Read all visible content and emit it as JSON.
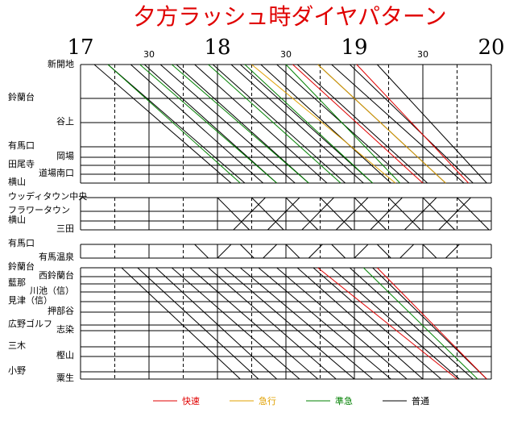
{
  "chart_data": {
    "type": "train-diagram",
    "title": "夕方ラッシュ時ダイヤパターン",
    "xlim": [
      0,
      180
    ],
    "xticks": [
      {
        "value": 0,
        "label": "17"
      },
      {
        "value": 30,
        "label": "30"
      },
      {
        "value": 60,
        "label": "18"
      },
      {
        "value": 90,
        "label": "30"
      },
      {
        "value": 120,
        "label": "19"
      },
      {
        "value": 150,
        "label": "30"
      },
      {
        "value": 180,
        "label": "20"
      }
    ],
    "minor_ticks": [
      15,
      45,
      75,
      105,
      135,
      165
    ],
    "legend": [
      {
        "label": "快速",
        "color": "#e00000"
      },
      {
        "label": "急行",
        "color": "#e0a000"
      },
      {
        "label": "準急",
        "color": "#008000"
      },
      {
        "label": "普通",
        "color": "#000000"
      }
    ],
    "groups": [
      {
        "stations": [
          "新開地",
          "鈴蘭台",
          "谷上",
          "有馬口",
          "岡場",
          "田尾寺",
          "道場南口",
          "横山"
        ],
        "trains": [
          {
            "dep": 6,
            "arr": 66,
            "kind": 3
          },
          {
            "dep": 12,
            "arr": 72,
            "kind": 3
          },
          {
            "dep": 22,
            "arr": 80,
            "kind": 3
          },
          {
            "dep": 28,
            "arr": 86,
            "kind": 3
          },
          {
            "dep": 35,
            "arr": 94,
            "kind": 3
          },
          {
            "dep": 42,
            "arr": 100,
            "kind": 3
          },
          {
            "dep": 50,
            "arr": 108,
            "kind": 3
          },
          {
            "dep": 58,
            "arr": 116,
            "kind": 3
          },
          {
            "dep": 66,
            "arr": 124,
            "kind": 3
          },
          {
            "dep": 70,
            "arr": 128,
            "kind": 3
          },
          {
            "dep": 79,
            "arr": 136,
            "kind": 3
          },
          {
            "dep": 86,
            "arr": 144,
            "kind": 3
          },
          {
            "dep": 95,
            "arr": 152,
            "kind": 3
          },
          {
            "dep": 104,
            "arr": 160,
            "kind": 3
          },
          {
            "dep": 110,
            "arr": 168,
            "kind": 3
          },
          {
            "dep": 118,
            "arr": 172,
            "kind": 3
          },
          {
            "dep": 130,
            "arr": 178,
            "kind": 3
          },
          {
            "dep": 12,
            "arr": 70,
            "kind": 2
          },
          {
            "dep": 26,
            "arr": 86,
            "kind": 2
          },
          {
            "dep": 40,
            "arr": 100,
            "kind": 2
          },
          {
            "dep": 56,
            "arr": 114,
            "kind": 2
          },
          {
            "dep": 72,
            "arr": 128,
            "kind": 2
          },
          {
            "dep": 90,
            "arr": 140,
            "kind": 2
          },
          {
            "dep": 75,
            "arr": 138,
            "kind": 1
          },
          {
            "dep": 104,
            "arr": 160,
            "kind": 1
          },
          {
            "dep": 93,
            "arr": 150,
            "kind": 0
          },
          {
            "dep": 121,
            "arr": 170,
            "kind": 0
          }
        ]
      },
      {
        "stations": [
          "ウッディタウン中央",
          "フラワータウン",
          "横山",
          "三田"
        ],
        "trains": [
          {
            "dep": 60,
            "arr": 74,
            "kind": 3,
            "dir": "down"
          },
          {
            "dep": 67,
            "arr": 81,
            "kind": 3,
            "dir": "up"
          },
          {
            "dep": 75,
            "arr": 89,
            "kind": 3,
            "dir": "down"
          },
          {
            "dep": 82,
            "arr": 96,
            "kind": 3,
            "dir": "up"
          },
          {
            "dep": 90,
            "arr": 104,
            "kind": 3,
            "dir": "down"
          },
          {
            "dep": 97,
            "arr": 111,
            "kind": 3,
            "dir": "up"
          },
          {
            "dep": 105,
            "arr": 119,
            "kind": 3,
            "dir": "down"
          },
          {
            "dep": 112,
            "arr": 126,
            "kind": 3,
            "dir": "up"
          },
          {
            "dep": 120,
            "arr": 134,
            "kind": 3,
            "dir": "down"
          },
          {
            "dep": 127,
            "arr": 141,
            "kind": 3,
            "dir": "up"
          },
          {
            "dep": 135,
            "arr": 149,
            "kind": 3,
            "dir": "down"
          },
          {
            "dep": 142,
            "arr": 156,
            "kind": 3,
            "dir": "up"
          },
          {
            "dep": 150,
            "arr": 164,
            "kind": 3,
            "dir": "down"
          },
          {
            "dep": 157,
            "arr": 171,
            "kind": 3,
            "dir": "up"
          },
          {
            "dep": 165,
            "arr": 179,
            "kind": 3,
            "dir": "down"
          }
        ]
      },
      {
        "stations": [
          "有馬口",
          "有馬温泉"
        ],
        "trains": [
          {
            "dep": 50,
            "arr": 56,
            "kind": 3,
            "dir": "down"
          },
          {
            "dep": 60,
            "arr": 66,
            "kind": 3,
            "dir": "up"
          },
          {
            "dep": 70,
            "arr": 76,
            "kind": 3,
            "dir": "down"
          },
          {
            "dep": 80,
            "arr": 86,
            "kind": 3,
            "dir": "up"
          },
          {
            "dep": 90,
            "arr": 96,
            "kind": 3,
            "dir": "down"
          },
          {
            "dep": 100,
            "arr": 106,
            "kind": 3,
            "dir": "up"
          },
          {
            "dep": 110,
            "arr": 116,
            "kind": 3,
            "dir": "down"
          },
          {
            "dep": 120,
            "arr": 126,
            "kind": 3,
            "dir": "up"
          },
          {
            "dep": 130,
            "arr": 136,
            "kind": 3,
            "dir": "down"
          },
          {
            "dep": 140,
            "arr": 146,
            "kind": 3,
            "dir": "up"
          },
          {
            "dep": 150,
            "arr": 156,
            "kind": 3,
            "dir": "down"
          },
          {
            "dep": 160,
            "arr": 166,
            "kind": 3,
            "dir": "up"
          }
        ]
      },
      {
        "stations": [
          "鈴蘭台",
          "西鈴蘭台",
          "藍那",
          "川池（信）",
          "見津（信）",
          "押部谷",
          "広野ゴルフ",
          "志染",
          "三木",
          "樫山",
          "小野",
          "粟生"
        ],
        "trains": [
          {
            "dep": 18,
            "arr": 70,
            "kind": 3
          },
          {
            "dep": 25,
            "arr": 78,
            "kind": 3
          },
          {
            "dep": 33,
            "arr": 86,
            "kind": 3
          },
          {
            "dep": 40,
            "arr": 96,
            "kind": 3
          },
          {
            "dep": 48,
            "arr": 104,
            "kind": 3
          },
          {
            "dep": 56,
            "arr": 112,
            "kind": 3
          },
          {
            "dep": 63,
            "arr": 120,
            "kind": 3
          },
          {
            "dep": 70,
            "arr": 128,
            "kind": 3
          },
          {
            "dep": 78,
            "arr": 136,
            "kind": 3
          },
          {
            "dep": 86,
            "arr": 143,
            "kind": 3
          },
          {
            "dep": 95,
            "arr": 150,
            "kind": 3
          },
          {
            "dep": 102,
            "arr": 158,
            "kind": 3
          },
          {
            "dep": 110,
            "arr": 166,
            "kind": 3
          },
          {
            "dep": 118,
            "arr": 172,
            "kind": 3
          },
          {
            "dep": 128,
            "arr": 178,
            "kind": 3
          },
          {
            "dep": 104,
            "arr": 165,
            "kind": 0
          },
          {
            "dep": 130,
            "arr": 178,
            "kind": 0
          },
          {
            "dep": 124,
            "arr": 174,
            "kind": 2
          }
        ]
      }
    ]
  }
}
